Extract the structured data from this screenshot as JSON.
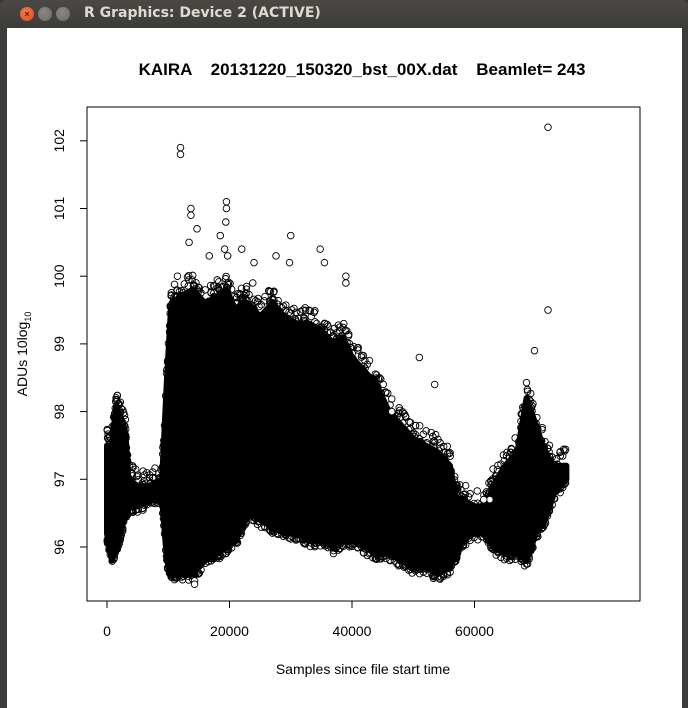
{
  "window": {
    "title": "R Graphics: Device 2 (ACTIVE)",
    "buttons": {
      "close": "×",
      "minimize": "–",
      "maximize": "□"
    }
  },
  "chart_data": {
    "type": "scatter",
    "title": "KAIRA    20131220_150320_bst_00X.dat    Beamlet= 243",
    "xlabel": "Samples since file start time",
    "ylabel_main": "ADUs 10log",
    "ylabel_sub": "10",
    "xlim": [
      -3000,
      76000
    ],
    "ylim": [
      95.3,
      102.5
    ],
    "xticks": [
      0,
      20000,
      40000,
      60000
    ],
    "xtick_labels": [
      "0",
      "20000",
      "40000",
      "60000"
    ],
    "yticks": [
      96,
      97,
      98,
      99,
      100,
      101,
      102
    ],
    "ytick_labels": [
      "96",
      "97",
      "98",
      "99",
      "100",
      "101",
      "102"
    ],
    "marker": "open-circle",
    "grid": false,
    "legend": null,
    "envelope": {
      "description": "Dense scatter band (min/max per x) approximated from the figure",
      "x": [
        0,
        800,
        1500,
        2200,
        3000,
        3500,
        5000,
        7000,
        9000,
        9800,
        10500,
        12000,
        14000,
        16000,
        18000,
        19500,
        21000,
        22000,
        23000,
        25000,
        27000,
        29000,
        31000,
        33000,
        35000,
        37000,
        38500,
        40000,
        42000,
        44000,
        46000,
        48000,
        50000,
        52000,
        54000,
        56000,
        57000,
        58000,
        60000,
        62000,
        63000,
        65000,
        67000,
        68500,
        70000,
        71500,
        73000,
        75000
      ],
      "ymax": [
        97.5,
        97.5,
        98.1,
        97.9,
        97.7,
        97.0,
        96.9,
        96.9,
        97.0,
        98.5,
        99.6,
        99.7,
        99.8,
        99.6,
        99.7,
        99.8,
        99.5,
        99.6,
        99.6,
        99.4,
        99.6,
        99.4,
        99.3,
        99.3,
        99.2,
        99.0,
        99.1,
        98.8,
        98.6,
        98.4,
        98.0,
        97.8,
        97.6,
        97.5,
        97.4,
        97.2,
        96.7,
        96.7,
        96.6,
        96.6,
        96.9,
        97.2,
        97.4,
        98.2,
        97.8,
        97.4,
        97.2,
        97.2
      ],
      "ymin": [
        96.2,
        95.8,
        96.0,
        96.2,
        96.5,
        96.6,
        96.6,
        96.7,
        96.7,
        95.8,
        95.6,
        95.6,
        95.6,
        95.8,
        95.9,
        96.0,
        96.1,
        96.3,
        96.5,
        96.4,
        96.3,
        96.2,
        96.2,
        96.1,
        96.1,
        96.0,
        96.1,
        96.1,
        96.0,
        95.9,
        95.9,
        95.8,
        95.7,
        95.7,
        95.6,
        95.7,
        95.9,
        96.1,
        96.2,
        96.2,
        96.0,
        95.9,
        95.9,
        95.8,
        96.2,
        96.4,
        96.8,
        97.0
      ]
    },
    "outliers": [
      {
        "x": 12000,
        "y": 101.9
      },
      {
        "x": 12000,
        "y": 101.8
      },
      {
        "x": 13700,
        "y": 101.0
      },
      {
        "x": 13700,
        "y": 100.9
      },
      {
        "x": 13400,
        "y": 100.5
      },
      {
        "x": 14700,
        "y": 100.7
      },
      {
        "x": 19500,
        "y": 101.1
      },
      {
        "x": 19500,
        "y": 101.0
      },
      {
        "x": 19400,
        "y": 100.8
      },
      {
        "x": 18500,
        "y": 100.6
      },
      {
        "x": 19200,
        "y": 100.4
      },
      {
        "x": 19700,
        "y": 100.3
      },
      {
        "x": 22000,
        "y": 100.4
      },
      {
        "x": 11500,
        "y": 100.0
      },
      {
        "x": 30000,
        "y": 100.6
      },
      {
        "x": 29800,
        "y": 100.2
      },
      {
        "x": 27600,
        "y": 100.3
      },
      {
        "x": 34800,
        "y": 100.4
      },
      {
        "x": 35500,
        "y": 100.2
      },
      {
        "x": 39000,
        "y": 100.0
      },
      {
        "x": 39000,
        "y": 99.9
      },
      {
        "x": 24000,
        "y": 100.2
      },
      {
        "x": 23800,
        "y": 99.9
      },
      {
        "x": 16700,
        "y": 100.3
      },
      {
        "x": 72000,
        "y": 102.2
      },
      {
        "x": 72000,
        "y": 99.5
      },
      {
        "x": 69800,
        "y": 98.9
      },
      {
        "x": 51000,
        "y": 98.8
      },
      {
        "x": 53500,
        "y": 98.4
      },
      {
        "x": 46500,
        "y": 98.0
      },
      {
        "x": 62500,
        "y": 96.7
      },
      {
        "x": 61500,
        "y": 96.7
      },
      {
        "x": 14300,
        "y": 95.5
      },
      {
        "x": 14300,
        "y": 95.45
      }
    ]
  }
}
